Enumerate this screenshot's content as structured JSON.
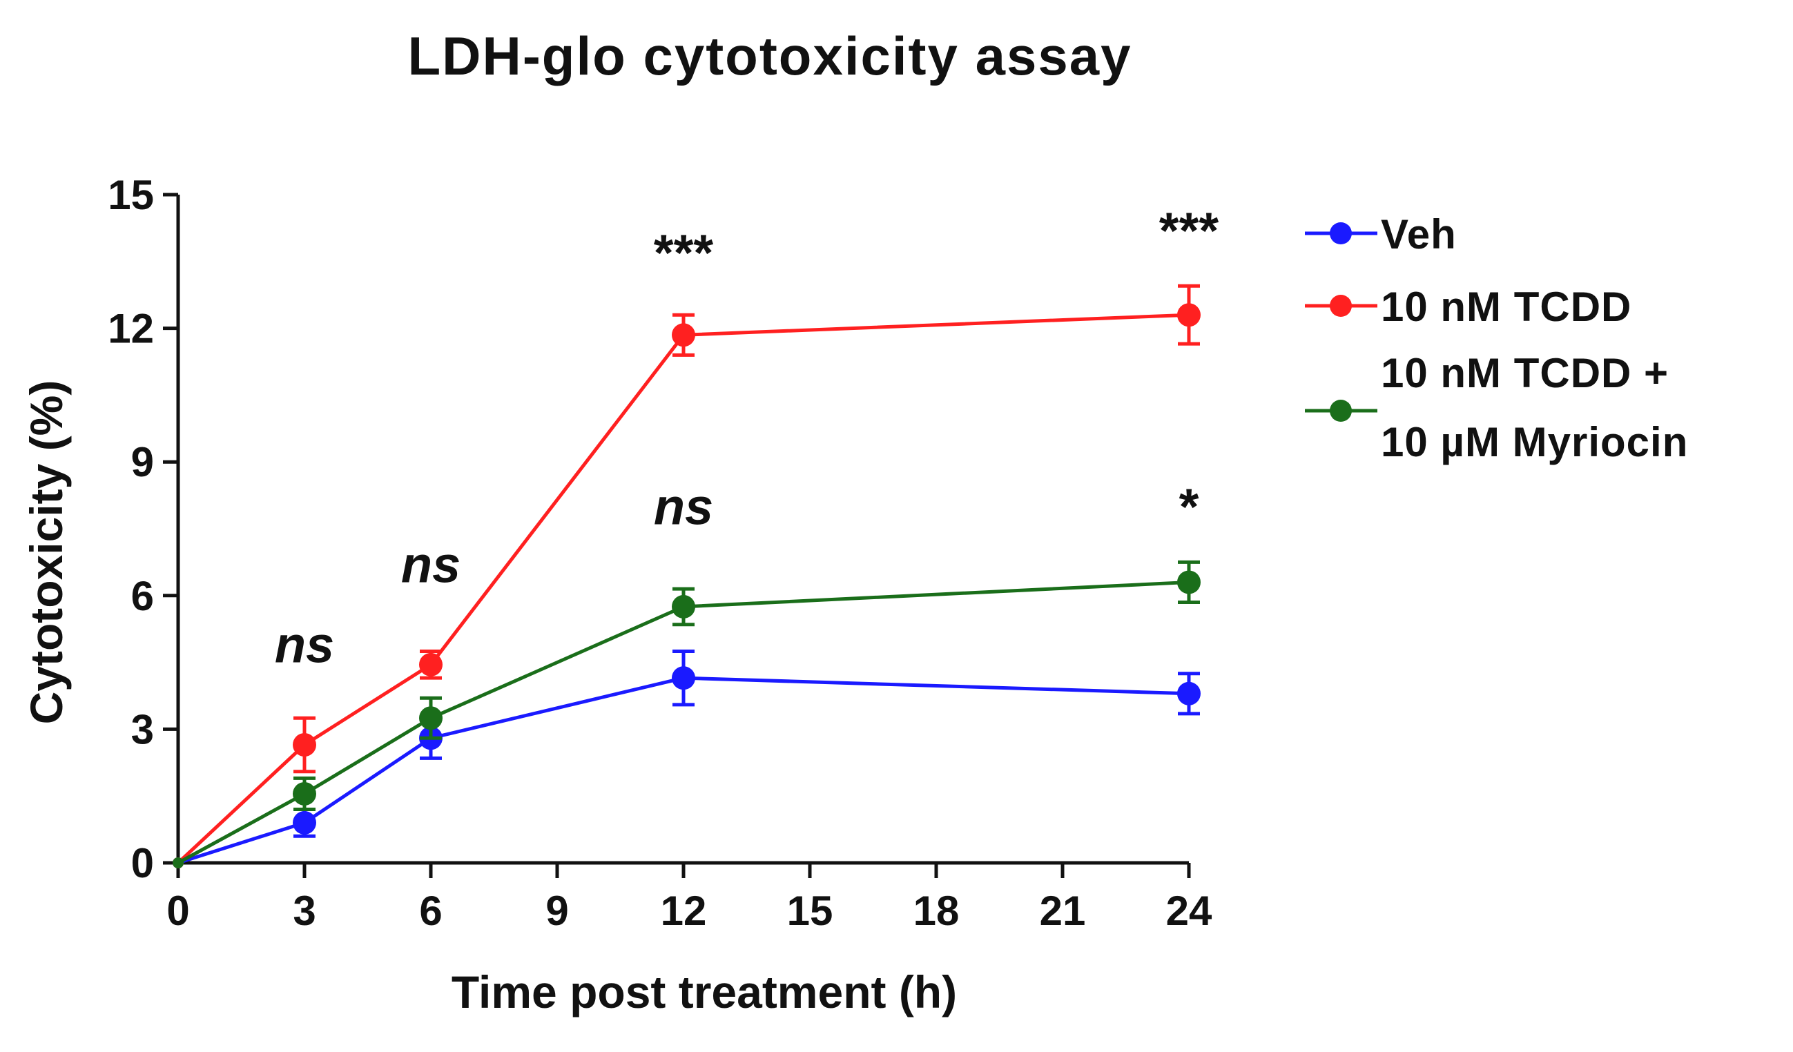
{
  "chart_data": {
    "type": "line",
    "title": "LDH-glo cytotoxicity assay",
    "xlabel": "Time post treatment (h)",
    "ylabel": "Cytotoxicity (%)",
    "xlim": [
      0,
      24
    ],
    "ylim": [
      0,
      15
    ],
    "xticks": [
      0,
      3,
      6,
      9,
      12,
      15,
      18,
      21,
      24
    ],
    "yticks": [
      0,
      3,
      6,
      9,
      12,
      15
    ],
    "x": [
      0,
      3,
      6,
      12,
      24
    ],
    "series": [
      {
        "name": "Veh",
        "color": "#1a1aff",
        "values": [
          0,
          0.9,
          2.8,
          4.15,
          3.8
        ],
        "errors": [
          0,
          0.3,
          0.45,
          0.6,
          0.45
        ]
      },
      {
        "name": "10 nM TCDD",
        "color": "#ff2020",
        "values": [
          0,
          2.65,
          4.45,
          11.85,
          12.3
        ],
        "errors": [
          0,
          0.6,
          0.3,
          0.45,
          0.65
        ]
      },
      {
        "name_lines": [
          "10 nM TCDD +",
          "10 µM Myriocin"
        ],
        "color": "#1a6e1a",
        "values": [
          0,
          1.55,
          3.25,
          5.75,
          6.3
        ],
        "errors": [
          0,
          0.35,
          0.45,
          0.4,
          0.45
        ]
      }
    ],
    "annotations": [
      {
        "x": 3,
        "y": 4.5,
        "text": "ns",
        "italic": true
      },
      {
        "x": 6,
        "y": 6.3,
        "text": "ns",
        "italic": true
      },
      {
        "x": 12,
        "y": 7.6,
        "text": "ns",
        "italic": true
      },
      {
        "x": 12,
        "y": 13.3,
        "text": "***",
        "italic": false
      },
      {
        "x": 24,
        "y": 13.8,
        "text": "***",
        "italic": false
      },
      {
        "x": 24,
        "y": 7.6,
        "text": "*",
        "italic": false
      }
    ],
    "legend_position": "right",
    "grid": false
  }
}
